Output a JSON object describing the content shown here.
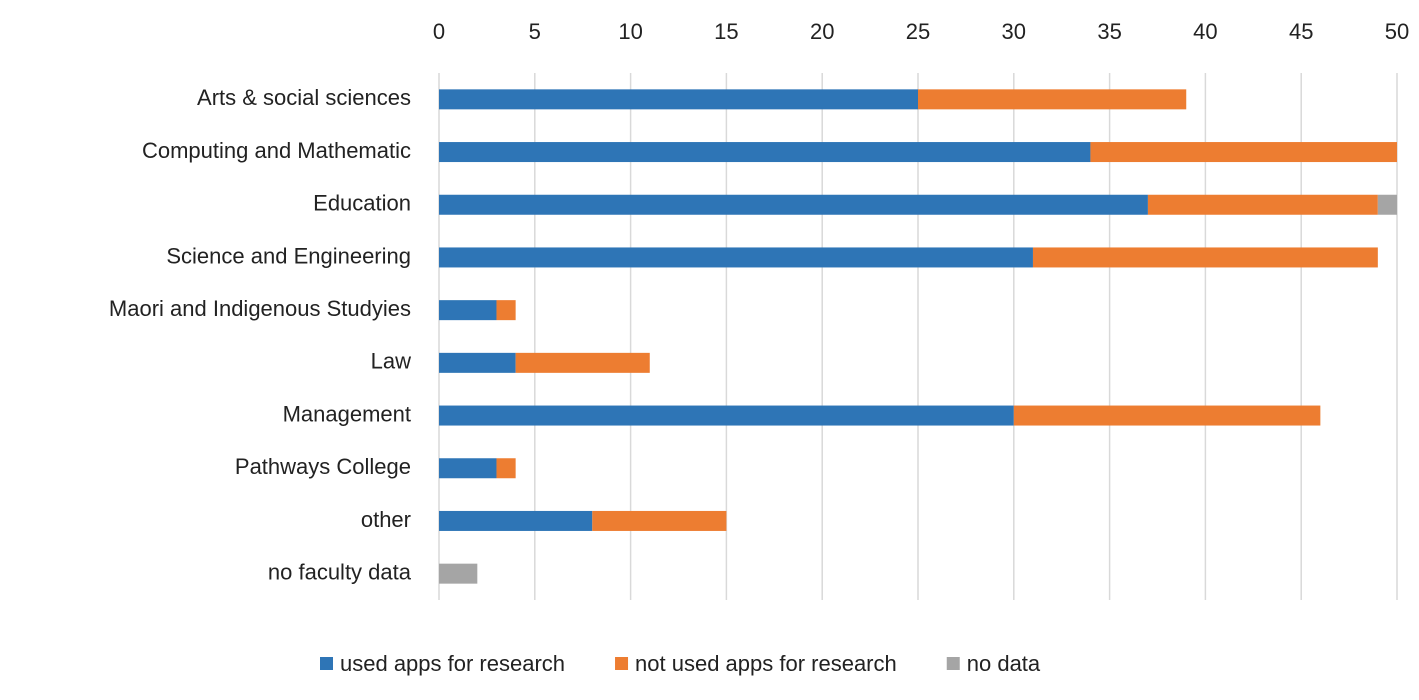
{
  "chart_data": {
    "type": "stacked-hbar",
    "categories": [
      "Arts & social sciences",
      "Computing and Mathematic",
      "Education",
      "Science and Engineering",
      "Maori and Indigenous Studyies",
      "Law",
      "Management",
      "Pathways College",
      "other",
      "no faculty data"
    ],
    "series": [
      {
        "name": "used apps for research",
        "color": "#2e75b6",
        "values": [
          25,
          34,
          37,
          31,
          3,
          4,
          30,
          3,
          8,
          0
        ]
      },
      {
        "name": "not used apps for research",
        "color": "#ed7d31",
        "values": [
          14,
          16,
          12,
          18,
          1,
          7,
          16,
          1,
          7,
          0
        ]
      },
      {
        "name": "no data",
        "color": "#a5a5a5",
        "values": [
          0,
          0,
          1,
          0,
          0,
          0,
          0,
          0,
          0,
          2
        ]
      }
    ],
    "xlim": [
      0,
      50
    ],
    "xticks": [
      0,
      5,
      10,
      15,
      20,
      25,
      30,
      35,
      40,
      45,
      50
    ],
    "grid": true,
    "legend": "bottom"
  }
}
